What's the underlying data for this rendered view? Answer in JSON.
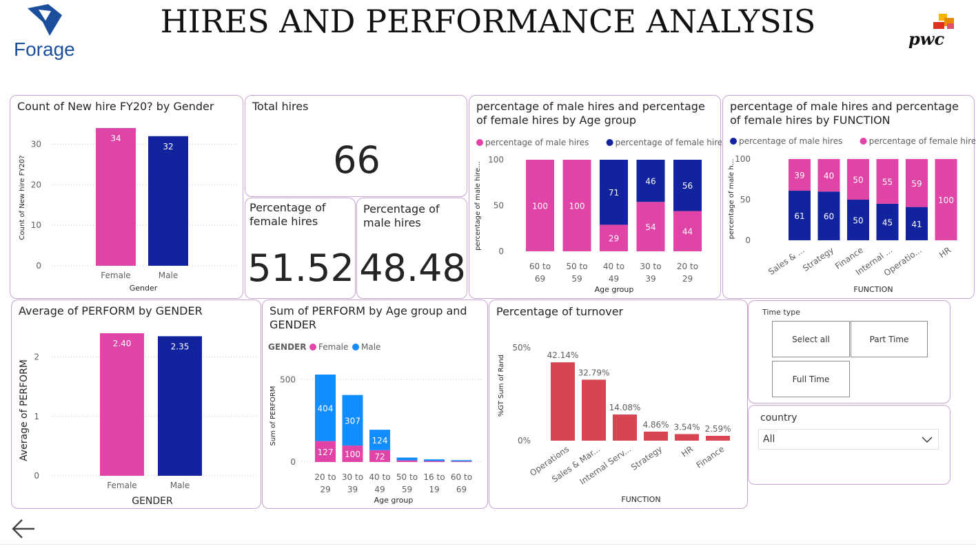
{
  "header": {
    "title": "HIRES AND PERFORMANCE ANALYSIS",
    "left_logo_text": "Forage",
    "right_logo_text": "pwc"
  },
  "colors": {
    "female": "#E044A7",
    "male_dark": "#12239E",
    "male_light": "#118DFF",
    "turnover": "#D64550",
    "border": "#C9A3D6"
  },
  "cards": {
    "hires_gender": {
      "title": "Count of New hire FY20? by Gender"
    },
    "total_hires": {
      "title": "Total hires",
      "value": "66"
    },
    "female_pct": {
      "title_line1": "Percentage of",
      "title_line2": "female hires",
      "value": "51.52"
    },
    "male_pct": {
      "title_line1": "Percentage of",
      "title_line2": "male hires",
      "value": "48.48"
    },
    "age_pct": {
      "title_line1": "percentage of male hires and percentage",
      "title_line2": "of female hires by Age group"
    },
    "func_pct": {
      "title_line1": "percentage of male hires and percentage",
      "title_line2": "of female hires by FUNCTION"
    },
    "perform_gender": {
      "title": "Average of PERFORM by GENDER"
    },
    "perform_age": {
      "title_line1": "Sum of PERFORM by Age group and",
      "title_line2": "GENDER"
    },
    "turnover": {
      "title": "Percentage of turnover"
    }
  },
  "slicers": {
    "time_type": {
      "label": "Time type",
      "options": [
        "Select all",
        "Part Time",
        "Full Time"
      ]
    },
    "country": {
      "label": "country",
      "selected": "All"
    }
  },
  "chart_data": [
    {
      "id": "hires_gender",
      "type": "bar",
      "categories": [
        "Female",
        "Male"
      ],
      "values": [
        34,
        32
      ],
      "xlabel": "Gender",
      "ylabel": "Count of New hire FY20?",
      "ylim": [
        0,
        34
      ],
      "yticks": [
        0,
        10,
        20,
        30
      ],
      "grid": true
    },
    {
      "id": "age_pct",
      "type": "bar",
      "stacked": true,
      "categories": [
        "60 to 69",
        "50 to 59",
        "40 to 49",
        "30 to 39",
        "20 to 29"
      ],
      "series": [
        {
          "name": "percentage of male hires",
          "values": [
            100,
            100,
            29,
            54,
            44
          ]
        },
        {
          "name": "percentage of female hires",
          "values": [
            0,
            0,
            71,
            46,
            56
          ]
        }
      ],
      "xlabel": "Age group",
      "ylabel": "percentage of male hire...",
      "ylim": [
        0,
        100
      ],
      "yticks": [
        0,
        50,
        100
      ],
      "legend": "top"
    },
    {
      "id": "func_pct",
      "type": "bar",
      "stacked": true,
      "categories": [
        "Sales & ...",
        "Strategy",
        "Finance",
        "Internal ...",
        "Operatio...",
        "HR"
      ],
      "series": [
        {
          "name": "percentage of male hires",
          "values": [
            61,
            60,
            50,
            45,
            41,
            0
          ]
        },
        {
          "name": "percentage of female hires",
          "values": [
            39,
            40,
            50,
            55,
            59,
            100
          ]
        }
      ],
      "xlabel": "FUNCTION",
      "ylabel": "percentage of male h...",
      "ylim": [
        0,
        100
      ],
      "yticks": [
        0,
        50,
        100
      ],
      "legend": "top"
    },
    {
      "id": "perform_gender",
      "type": "bar",
      "categories": [
        "Female",
        "Male"
      ],
      "values": [
        2.4,
        2.35
      ],
      "value_labels": [
        "2.40",
        "2.35"
      ],
      "xlabel": "GENDER",
      "ylabel": "Average of PERFORM",
      "ylim": [
        0,
        2.4
      ],
      "yticks": [
        0,
        1,
        2
      ],
      "grid": true
    },
    {
      "id": "perform_age",
      "type": "bar",
      "stacked": true,
      "legend_title": "GENDER",
      "categories": [
        "20 to 29",
        "30 to 39",
        "40 to 49",
        "50 to 59",
        "16 to 19",
        "60 to 69"
      ],
      "series": [
        {
          "name": "Female",
          "values": [
            127,
            100,
            72,
            10,
            6,
            4
          ]
        },
        {
          "name": "Male",
          "values": [
            404,
            307,
            124,
            17,
            10,
            7
          ]
        }
      ],
      "xlabel": "Age group",
      "ylabel": "Sum of PERFORM",
      "ylim": [
        0,
        531
      ],
      "yticks": [
        0,
        500
      ],
      "legend": "top"
    },
    {
      "id": "turnover",
      "type": "bar",
      "categories": [
        "Operations",
        "Sales & Mar...",
        "Internal Serv...",
        "Strategy",
        "HR",
        "Finance"
      ],
      "values": [
        42.14,
        32.79,
        14.08,
        4.86,
        3.54,
        2.59
      ],
      "value_labels": [
        "42.14%",
        "32.79%",
        "14.08%",
        "4.86%",
        "3.54%",
        "2.59%"
      ],
      "xlabel": "FUNCTION",
      "ylabel": "%GT Sum of Rand",
      "ylim": [
        0,
        50
      ],
      "yticks": [
        "0%",
        "50%"
      ]
    }
  ]
}
